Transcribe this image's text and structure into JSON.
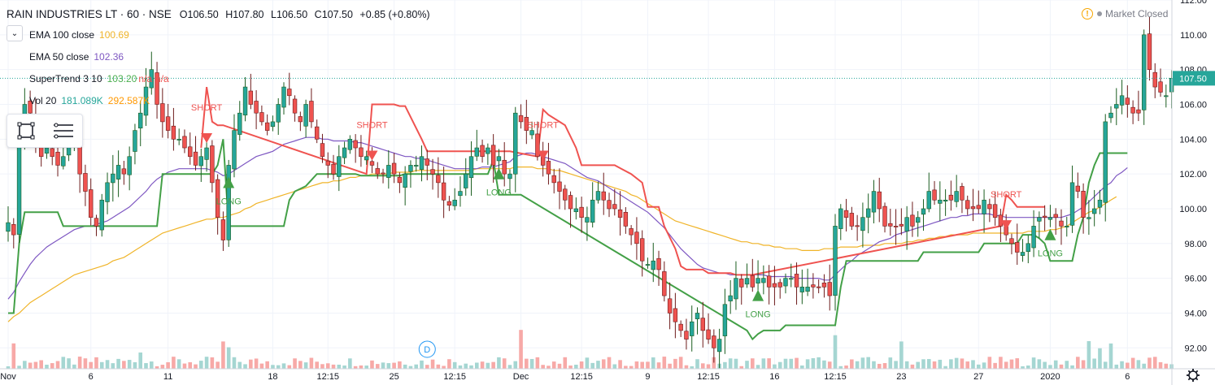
{
  "symbol": {
    "title": "RAIN INDUSTRIES LT · 60 · NSE",
    "open": "O106.50",
    "high": "H107.80",
    "low": "L106.50",
    "close": "C107.50",
    "change": "+0.85 (+0.80%)"
  },
  "indicators": [
    {
      "name": "EMA 100 close",
      "values": [
        "100.69"
      ],
      "colors": [
        "#f0b429"
      ]
    },
    {
      "name": "EMA 50 close",
      "values": [
        "102.36"
      ],
      "colors": [
        "#7e57c2"
      ]
    },
    {
      "name": "SuperTrend 3 10",
      "values": [
        "103.20",
        "n/a",
        "n/a"
      ],
      "colors": [
        "#4caf50",
        "#ef5350",
        "#ef5350"
      ]
    },
    {
      "name": "Vol 20",
      "values": [
        "181.089K",
        "292.587K"
      ],
      "colors": [
        "#26a69a",
        "#ff9800"
      ]
    }
  ],
  "market_status": "Market Closed",
  "colors": {
    "up": "#26a69a",
    "down": "#ef5350",
    "ema100": "#f0b429",
    "ema50": "#7e57c2",
    "st_long": "#43a047",
    "st_short": "#ef5350",
    "grid": "#f0f3fa",
    "axis_text": "#131722"
  },
  "chart_data": {
    "type": "candlestick",
    "ylim": [
      90.8,
      112
    ],
    "y_ticks": [
      "92.00",
      "94.00",
      "96.00",
      "98.00",
      "100.00",
      "102.00",
      "104.00",
      "106.00",
      "108.00",
      "110.00",
      "112.00"
    ],
    "x_ticks": [
      {
        "label": "Nov",
        "i": 0
      },
      {
        "label": "6",
        "i": 15
      },
      {
        "label": "11",
        "i": 29
      },
      {
        "label": "18",
        "i": 48
      },
      {
        "label": "12:15",
        "i": 58
      },
      {
        "label": "25",
        "i": 70
      },
      {
        "label": "12:15",
        "i": 81
      },
      {
        "label": "Dec",
        "i": 93
      },
      {
        "label": "12:15",
        "i": 104
      },
      {
        "label": "9",
        "i": 116
      },
      {
        "label": "12:15",
        "i": 127
      },
      {
        "label": "16",
        "i": 139
      },
      {
        "label": "12:15",
        "i": 150
      },
      {
        "label": "23",
        "i": 162
      },
      {
        "label": "27",
        "i": 176
      },
      {
        "label": "2020",
        "i": 189
      },
      {
        "label": "6",
        "i": 203
      }
    ],
    "last_price": "107.50",
    "session_marker": "D",
    "signals": [
      {
        "type": "short",
        "label": "SHORT",
        "i": 36
      },
      {
        "type": "long",
        "label": "LONG",
        "i": 40
      },
      {
        "type": "short",
        "label": "SHORT",
        "i": 66
      },
      {
        "type": "long",
        "label": "LONG",
        "i": 89
      },
      {
        "type": "short",
        "label": "SHORT",
        "i": 97
      },
      {
        "type": "long",
        "label": "LONG",
        "i": 136
      },
      {
        "type": "short",
        "label": "SHORT",
        "i": 181
      },
      {
        "type": "long",
        "label": "LONG",
        "i": 189
      }
    ],
    "closes": [
      99.2,
      98.5,
      104,
      106,
      105.5,
      104,
      103,
      103.5,
      103,
      102.5,
      103,
      104,
      104.5,
      102,
      101,
      99.5,
      99,
      100.5,
      101.5,
      102,
      102.5,
      102,
      103,
      104.5,
      105.5,
      107,
      108,
      106,
      105,
      104.5,
      104,
      104,
      103.5,
      103,
      102.5,
      103,
      103.5,
      101.5,
      99.5,
      98.2,
      102.5,
      104.5,
      105.5,
      107,
      106,
      105.5,
      105,
      104.5,
      105,
      106,
      107,
      106.5,
      105.5,
      105,
      106,
      105,
      104,
      103,
      102.5,
      102,
      103,
      103.5,
      104,
      103.5,
      103,
      103,
      102.5,
      102,
      102,
      102.5,
      102,
      101.5,
      102,
      102.5,
      102.5,
      103,
      102.5,
      102,
      101.5,
      100.5,
      100.2,
      100.5,
      101,
      102,
      103,
      103.5,
      103,
      103.5,
      102.5,
      103,
      102,
      102,
      105.5,
      105,
      104.5,
      104.5,
      103,
      102.5,
      102,
      101.5,
      101,
      100.5,
      100,
      100,
      99.5,
      99.5,
      100.5,
      101,
      100.5,
      100,
      100,
      99.5,
      99,
      98.5,
      98,
      97,
      96.8,
      97,
      96.5,
      95,
      94,
      93.5,
      93,
      92.5,
      93.5,
      94,
      93,
      92.5,
      92,
      92.5,
      94.5,
      95,
      96,
      95.5,
      96,
      95.5,
      96,
      96,
      95.5,
      95.5,
      95.5,
      96,
      96,
      95.5,
      95.5,
      95.5,
      95.5,
      95.5,
      95.5,
      95,
      99,
      100,
      99.5,
      99,
      99,
      99.5,
      100,
      101,
      100,
      99,
      99,
      99,
      99,
      99.5,
      99,
      99.5,
      100,
      101,
      100.5,
      100.5,
      100.5,
      100.5,
      101,
      100.5,
      100,
      100,
      100,
      100.5,
      100,
      99.5,
      99,
      98.5,
      98,
      97.5,
      97.5,
      98,
      99,
      99.5,
      99.5,
      99.5,
      99.5,
      99,
      99,
      101.5,
      101,
      99.5,
      99.5,
      100,
      100.5,
      105,
      105.5,
      106,
      106.5,
      106,
      105.5,
      105.5,
      110,
      108,
      107,
      106.7,
      106.5,
      107.5
    ],
    "ema100": [
      93.5,
      93.8,
      94,
      94.3,
      94.6,
      94.8,
      95,
      95.2,
      95.4,
      95.6,
      95.8,
      96,
      96.2,
      96.3,
      96.4,
      96.5,
      96.6,
      96.7,
      96.8,
      97,
      97.1,
      97.2,
      97.4,
      97.6,
      97.8,
      98,
      98.2,
      98.4,
      98.6,
      98.7,
      98.8,
      98.9,
      99,
      99.1,
      99.2,
      99.3,
      99.4,
      99.4,
      99.5,
      99.5,
      99.6,
      99.7,
      99.8,
      100,
      100.1,
      100.3,
      100.4,
      100.5,
      100.6,
      100.7,
      100.8,
      100.9,
      101,
      101.1,
      101.2,
      101.3,
      101.4,
      101.5,
      101.5,
      101.6,
      101.6,
      101.7,
      101.8,
      101.8,
      101.9,
      101.9,
      102,
      102,
      102,
      102,
      102.1,
      102.1,
      102.1,
      102.1,
      102.2,
      102.2,
      102.2,
      102.2,
      102.2,
      102.2,
      102.2,
      102.2,
      102.2,
      102.2,
      102.2,
      102.3,
      102.3,
      102.3,
      102.3,
      102.3,
      102.3,
      102.3,
      102.4,
      102.4,
      102.4,
      102.4,
      102.3,
      102.3,
      102.3,
      102.2,
      102.2,
      102.1,
      102,
      101.9,
      101.8,
      101.7,
      101.6,
      101.5,
      101.4,
      101.3,
      101.2,
      101.1,
      101,
      100.8,
      100.7,
      100.5,
      100.3,
      100.1,
      99.9,
      99.7,
      99.5,
      99.3,
      99.2,
      99.1,
      99,
      98.9,
      98.8,
      98.7,
      98.6,
      98.5,
      98.4,
      98.3,
      98.2,
      98.1,
      98.1,
      98,
      98,
      97.9,
      97.9,
      97.8,
      97.8,
      97.7,
      97.7,
      97.7,
      97.6,
      97.6,
      97.6,
      97.6,
      97.7,
      97.7,
      97.7,
      97.8,
      97.8,
      97.8,
      97.8,
      97.9,
      97.9,
      97.9,
      97.9,
      98,
      98,
      98,
      98,
      98.1,
      98.1,
      98.2,
      98.2,
      98.3,
      98.3,
      98.4,
      98.4,
      98.5,
      98.5,
      98.5,
      98.5,
      98.6,
      98.6,
      98.6,
      98.6,
      98.6,
      98.6,
      98.6,
      98.6,
      98.6,
      98.6,
      98.7,
      98.7,
      98.7,
      98.7,
      98.8,
      98.8,
      98.9,
      99,
      99.2,
      99.4,
      99.6,
      99.8,
      99.9,
      100.1,
      100.3,
      100.5,
      100.69
    ],
    "ema50": [
      94.8,
      95.2,
      95.8,
      96.3,
      96.8,
      97.2,
      97.5,
      97.8,
      98,
      98.2,
      98.4,
      98.6,
      98.8,
      98.9,
      99,
      99,
      99.1,
      99.2,
      99.3,
      99.5,
      99.7,
      99.9,
      100.1,
      100.4,
      100.7,
      101,
      101.4,
      101.7,
      101.9,
      102.1,
      102.2,
      102.3,
      102.3,
      102.3,
      102.3,
      102.3,
      102.3,
      102.2,
      102.1,
      101.9,
      102,
      102.2,
      102.4,
      102.6,
      102.8,
      103,
      103.1,
      103.2,
      103.3,
      103.5,
      103.7,
      103.8,
      103.9,
      104,
      104.1,
      104.1,
      104.1,
      104,
      104,
      103.9,
      103.9,
      103.9,
      103.9,
      103.8,
      103.8,
      103.7,
      103.6,
      103.5,
      103.4,
      103.3,
      103.2,
      103.1,
      103,
      103,
      102.9,
      102.9,
      102.8,
      102.7,
      102.6,
      102.5,
      102.4,
      102.3,
      102.3,
      102.3,
      102.3,
      102.3,
      102.4,
      102.4,
      102.4,
      102.5,
      102.6,
      102.7,
      103,
      103.1,
      103.2,
      103.2,
      103.1,
      103,
      102.9,
      102.8,
      102.7,
      102.6,
      102.4,
      102.2,
      102,
      101.8,
      101.7,
      101.6,
      101.4,
      101.2,
      101,
      100.8,
      100.6,
      100.4,
      100.2,
      100,
      99.8,
      99.5,
      99.2,
      98.9,
      98.5,
      98.1,
      97.7,
      97.4,
      97.1,
      96.8,
      96.6,
      96.5,
      96.4,
      96.3,
      96.3,
      96.2,
      96.2,
      96.2,
      96.2,
      96.2,
      96.2,
      96.2,
      96.1,
      96.1,
      96.1,
      96.1,
      96.1,
      96,
      96,
      96,
      96,
      96,
      95.9,
      95.9,
      96.2,
      96.5,
      96.8,
      97,
      97.3,
      97.5,
      97.7,
      97.9,
      98.1,
      98.2,
      98.3,
      98.5,
      98.6,
      98.7,
      98.8,
      98.9,
      99,
      99.1,
      99.2,
      99.3,
      99.4,
      99.5,
      99.5,
      99.6,
      99.6,
      99.7,
      99.7,
      99.7,
      99.7,
      99.6,
      99.6,
      99.5,
      99.5,
      99.5,
      99.5,
      99.5,
      99.5,
      99.5,
      99.5,
      99.5,
      99.5,
      99.5,
      99.6,
      99.7,
      99.9,
      100.1,
      100.4,
      100.7,
      101,
      101.3,
      101.5,
      101.9,
      102.1,
      102.36
    ],
    "st_long": [
      [
        0,
        94
      ],
      [
        1,
        94
      ],
      [
        2,
        98
      ],
      [
        3,
        99.8
      ],
      [
        4,
        99.8
      ],
      [
        9,
        99.8
      ],
      [
        10,
        99
      ],
      [
        27,
        99
      ],
      [
        28,
        102
      ],
      [
        37,
        102
      ],
      [
        38,
        102.5
      ],
      [
        39,
        104
      ],
      [
        40,
        99
      ],
      [
        50,
        99
      ],
      [
        51,
        100.5
      ],
      [
        52,
        101
      ],
      [
        54,
        101.3
      ],
      [
        56,
        102
      ],
      [
        63,
        102
      ],
      [
        64,
        101.9
      ],
      [
        71,
        101.9
      ],
      [
        72,
        102
      ],
      [
        87,
        102
      ],
      [
        88,
        102.8
      ],
      [
        89,
        100.8
      ],
      [
        93,
        100.8
      ],
      [
        134,
        93
      ],
      [
        135,
        92.5
      ],
      [
        136,
        92.8
      ],
      [
        137,
        93
      ],
      [
        140,
        93
      ],
      [
        141,
        93.3
      ],
      [
        150,
        93.3
      ],
      [
        151,
        95.5
      ],
      [
        152,
        97
      ],
      [
        165,
        97
      ],
      [
        166,
        97.5
      ],
      [
        176,
        97.5
      ],
      [
        177,
        98
      ],
      [
        183,
        98
      ],
      [
        184,
        98.5
      ],
      [
        186,
        98.5
      ],
      [
        187,
        98.3
      ],
      [
        188,
        98
      ],
      [
        189,
        97
      ],
      [
        193,
        97
      ],
      [
        194,
        98.5
      ],
      [
        195,
        99.5
      ],
      [
        196,
        101.5
      ],
      [
        197,
        102.5
      ],
      [
        198,
        103.2
      ],
      [
        201,
        103.2
      ],
      [
        202,
        103.2
      ],
      [
        203,
        103.2
      ]
    ],
    "st_short": [
      [
        35,
        103.5
      ],
      [
        36,
        107
      ],
      [
        37,
        105
      ],
      [
        38,
        104.8
      ],
      [
        39,
        104.8
      ],
      [
        65,
        102
      ],
      [
        66,
        106
      ],
      [
        67,
        106
      ],
      [
        70,
        106
      ],
      [
        71,
        105.9
      ],
      [
        72,
        105.9
      ],
      [
        75,
        104
      ],
      [
        76,
        103.3
      ],
      [
        90,
        103.3
      ],
      [
        91,
        103.3
      ],
      [
        96,
        103
      ],
      [
        97,
        105.7
      ],
      [
        98,
        105.4
      ],
      [
        100,
        105
      ],
      [
        101,
        104.8
      ],
      [
        103,
        103.5
      ],
      [
        104,
        102.5
      ],
      [
        110,
        102.5
      ],
      [
        113,
        102
      ],
      [
        115,
        101.5
      ],
      [
        116,
        100.1
      ],
      [
        118,
        100.1
      ],
      [
        119,
        99
      ],
      [
        121,
        97.7
      ],
      [
        122,
        96.7
      ],
      [
        123,
        96.5
      ],
      [
        126,
        96.5
      ],
      [
        127,
        96.3
      ],
      [
        130,
        96.3
      ],
      [
        131,
        96.3
      ],
      [
        132,
        96.2
      ],
      [
        135,
        96.2
      ],
      [
        180,
        99
      ],
      [
        181,
        100.8
      ],
      [
        182,
        100.5
      ],
      [
        183,
        100.1
      ],
      [
        188,
        100.1
      ]
    ]
  }
}
